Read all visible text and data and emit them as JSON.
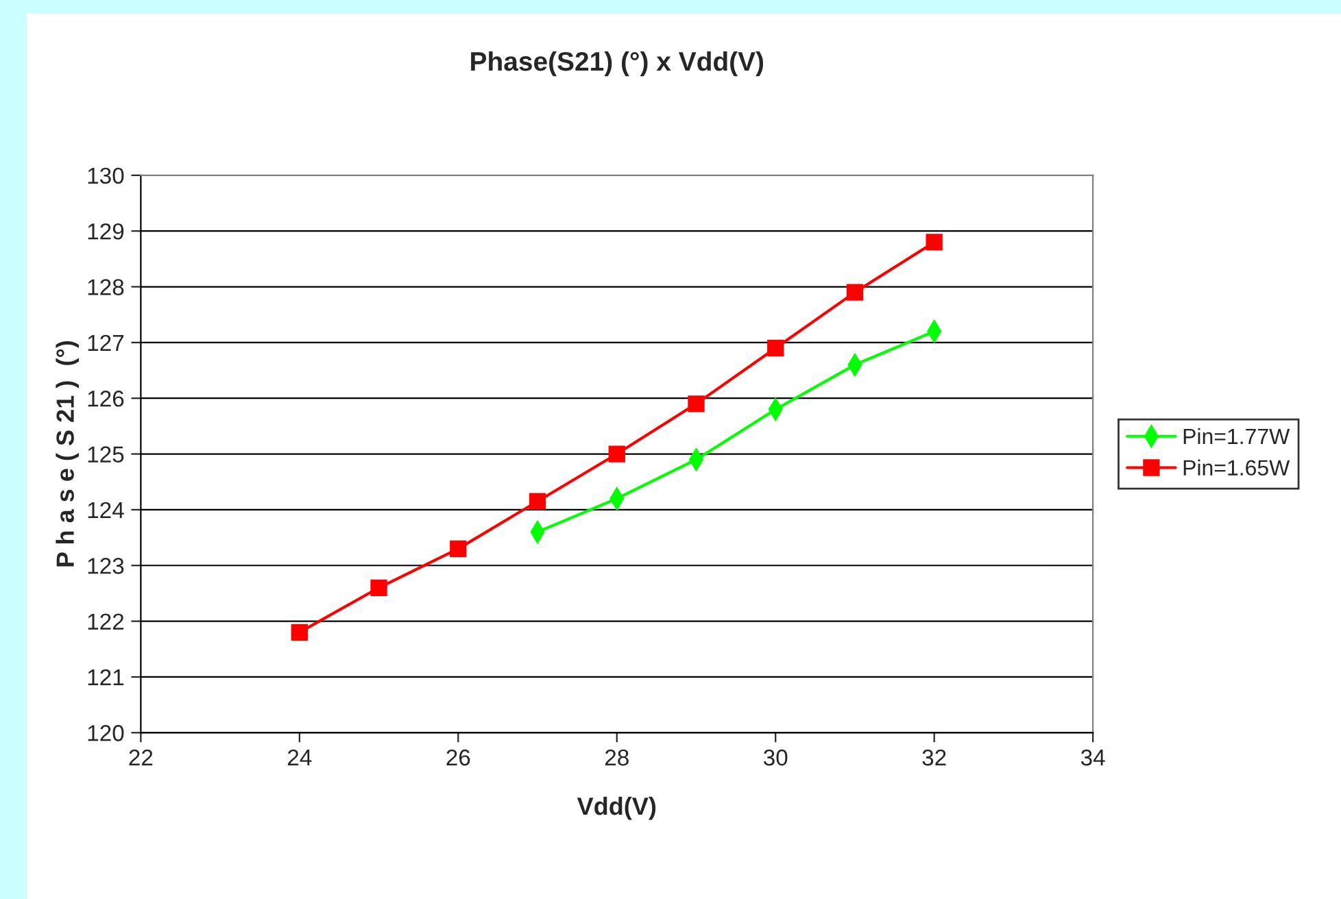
{
  "chart_data": {
    "type": "line",
    "title": "Phase(S21) (°) x Vdd(V)",
    "xlabel": "Vdd(V)",
    "ylabel": "P h a s e ( S 21 )  (°)",
    "xlim": [
      22,
      34
    ],
    "xticks": [
      22,
      24,
      26,
      28,
      30,
      32,
      34
    ],
    "ylim": [
      120,
      130
    ],
    "yticks": [
      120,
      121,
      122,
      123,
      124,
      125,
      126,
      127,
      128,
      129,
      130
    ],
    "grid": "y",
    "legend": "right",
    "series": [
      {
        "name": "Pin=1.77W",
        "color": "#00ff00",
        "marker": "diamond",
        "x": [
          27,
          28,
          29,
          30,
          31,
          32
        ],
        "values": [
          123.6,
          124.2,
          124.9,
          125.8,
          126.6,
          127.2
        ]
      },
      {
        "name": "Pin=1.65W",
        "color": "#ff0000",
        "marker": "square",
        "x": [
          24,
          25,
          26,
          27,
          28,
          29,
          30,
          31,
          32
        ],
        "values": [
          121.8,
          122.6,
          123.3,
          124.15,
          125.0,
          125.9,
          126.9,
          127.9,
          128.8
        ]
      }
    ]
  }
}
